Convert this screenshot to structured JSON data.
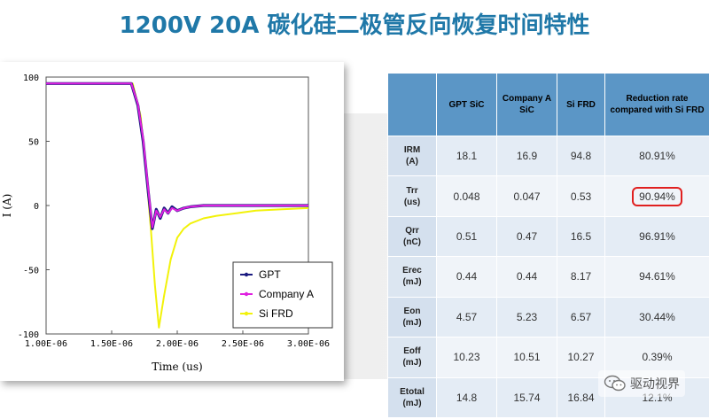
{
  "title": "1200V 20A 碳化硅二极管反向恢复时间特性",
  "chart_data": {
    "type": "line",
    "xlabel": "Time (us)",
    "ylabel": "I (A)",
    "xlim": [
      1e-06,
      3e-06
    ],
    "ylim": [
      -100,
      100
    ],
    "x_tick_labels": [
      "1.00E-06",
      "1.50E-06",
      "2.00E-06",
      "2.50E-06",
      "3.00E-06"
    ],
    "y_tick_labels": [
      "100",
      "50",
      "0",
      "-50",
      "-100"
    ],
    "legend_position": "bottom-right",
    "series": [
      {
        "name": "GPT",
        "color": "#1a1a80",
        "x": [
          1e-06,
          1.2e-06,
          1.5e-06,
          1.65e-06,
          1.7e-06,
          1.74e-06,
          1.78e-06,
          1.81e-06,
          1.84e-06,
          1.87e-06,
          1.9e-06,
          1.93e-06,
          1.96e-06,
          2e-06,
          2.05e-06,
          2.1e-06,
          2.2e-06,
          2.4e-06,
          2.7e-06,
          3e-06
        ],
        "y": [
          95,
          95,
          95,
          95,
          78,
          50,
          10,
          -18,
          -3,
          -10,
          -2,
          -6,
          -1,
          -4,
          -2,
          -1,
          0,
          0,
          0,
          0
        ]
      },
      {
        "name": "Company A",
        "color": "#e020e0",
        "x": [
          1e-06,
          1.2e-06,
          1.5e-06,
          1.65e-06,
          1.7e-06,
          1.74e-06,
          1.78e-06,
          1.81e-06,
          1.84e-06,
          1.87e-06,
          1.9e-06,
          1.93e-06,
          1.96e-06,
          2e-06,
          2.05e-06,
          2.1e-06,
          2.2e-06,
          2.4e-06,
          2.7e-06,
          3e-06
        ],
        "y": [
          95,
          95,
          95,
          95,
          79,
          52,
          12,
          -17,
          -4,
          -9,
          -3,
          -6,
          -2,
          -4,
          -2,
          -1,
          0,
          0,
          0,
          0
        ]
      },
      {
        "name": "Si FRD",
        "color": "#f2f20a",
        "x": [
          1e-06,
          1.2e-06,
          1.5e-06,
          1.66e-06,
          1.72e-06,
          1.76e-06,
          1.8e-06,
          1.83e-06,
          1.86e-06,
          1.9e-06,
          1.95e-06,
          2e-06,
          2.05e-06,
          2.1e-06,
          2.2e-06,
          2.3e-06,
          2.45e-06,
          2.6e-06,
          2.8e-06,
          3e-06
        ],
        "y": [
          95,
          95,
          95,
          95,
          70,
          30,
          -20,
          -62,
          -95,
          -70,
          -42,
          -25,
          -18,
          -14,
          -10,
          -8,
          -6,
          -4,
          -3,
          -2
        ]
      }
    ]
  },
  "table": {
    "headers": [
      "",
      "GPT SiC",
      "Company A SiC",
      "Si FRD",
      "Reduction rate compared with Si FRD"
    ],
    "rows": [
      {
        "param": "IRM",
        "unit": "(A)",
        "cells": [
          "18.1",
          "16.9",
          "94.8",
          "80.91%"
        ],
        "highlight": false
      },
      {
        "param": "Trr",
        "unit": "(us)",
        "cells": [
          "0.048",
          "0.047",
          "0.53",
          "90.94%"
        ],
        "highlight": true
      },
      {
        "param": "Qrr",
        "unit": "(nC)",
        "cells": [
          "0.51",
          "0.47",
          "16.5",
          "96.91%"
        ],
        "highlight": false
      },
      {
        "param": "Erec",
        "unit": "(mJ)",
        "cells": [
          "0.44",
          "0.44",
          "8.17",
          "94.61%"
        ],
        "highlight": false
      },
      {
        "param": "Eon",
        "unit": "(mJ)",
        "cells": [
          "4.57",
          "5.23",
          "6.57",
          "30.44%"
        ],
        "highlight": false
      },
      {
        "param": "Eoff",
        "unit": "(mJ)",
        "cells": [
          "10.23",
          "10.51",
          "10.27",
          "0.39%"
        ],
        "highlight": false
      },
      {
        "param": "Etotal",
        "unit": "(mJ)",
        "cells": [
          "14.8",
          "15.74",
          "16.84",
          "12.1%"
        ],
        "highlight": false
      }
    ]
  },
  "watermark": {
    "text": "驱动视界",
    "icon": "wechat-icon"
  }
}
